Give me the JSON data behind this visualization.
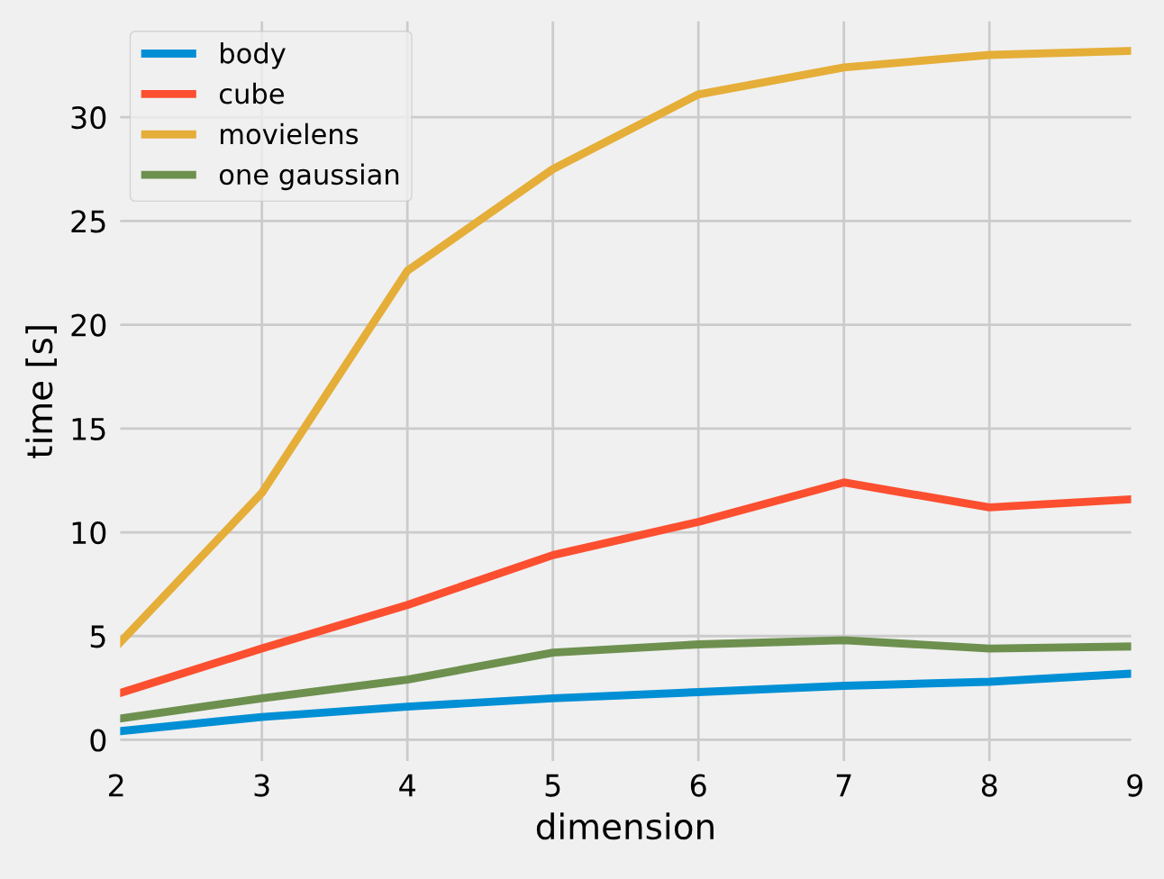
{
  "chart_data": {
    "type": "line",
    "xlabel": "dimension",
    "ylabel": "time [s]",
    "x": [
      2,
      3,
      4,
      5,
      6,
      7,
      8,
      9
    ],
    "series": [
      {
        "name": "body",
        "color": "#008fd5",
        "values": [
          0.4,
          1.1,
          1.6,
          2.0,
          2.3,
          2.6,
          2.8,
          3.2
        ]
      },
      {
        "name": "cube",
        "color": "#fc4f30",
        "values": [
          2.2,
          4.4,
          6.5,
          8.9,
          10.5,
          12.4,
          11.2,
          11.6
        ]
      },
      {
        "name": "movielens",
        "color": "#e5ae38",
        "values": [
          4.5,
          11.9,
          22.6,
          27.5,
          31.1,
          32.4,
          33.0,
          33.2
        ]
      },
      {
        "name": "one gaussian",
        "color": "#6d904f",
        "values": [
          1.0,
          2.0,
          2.9,
          4.2,
          4.6,
          4.8,
          4.4,
          4.5
        ]
      }
    ],
    "xlim": [
      2,
      9
    ],
    "xticks": [
      2,
      3,
      4,
      5,
      6,
      7,
      8,
      9
    ],
    "ylim": [
      -1.2,
      34.8
    ],
    "yticks": [
      0,
      5,
      10,
      15,
      20,
      25,
      30
    ],
    "grid": true,
    "legend": "top left",
    "marker": "none",
    "line_style": "solid"
  }
}
